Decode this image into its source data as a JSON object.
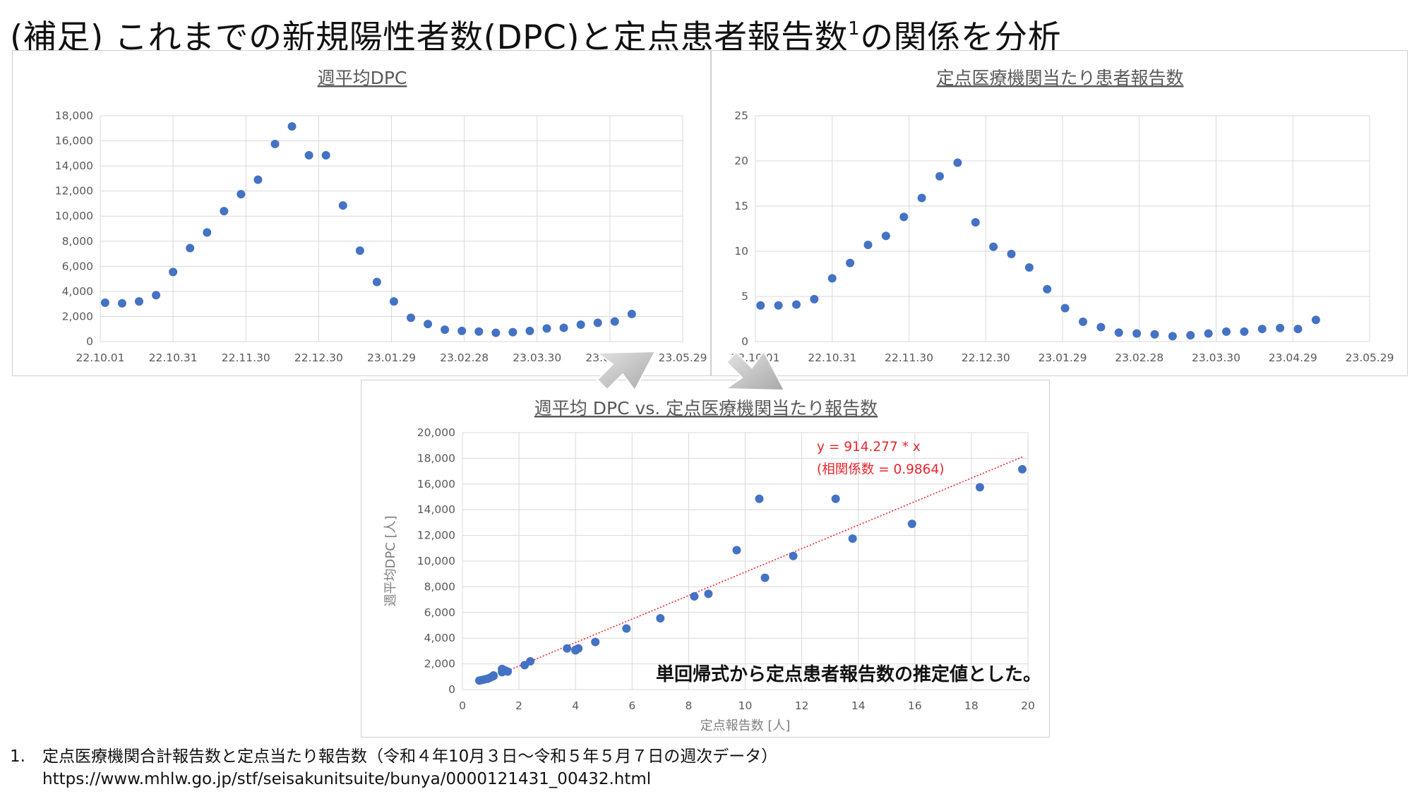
{
  "title": {
    "text": "(補足) これまでの新規陽性者数(DPC)と定点患者報告数",
    "sup": "1",
    "suffix": "の関係を分析"
  },
  "colors": {
    "marker": "#4472c4",
    "trendline": "#e8262d",
    "grid": "#d9d9d9"
  },
  "chart_data": [
    {
      "id": "dpc",
      "type": "scatter",
      "title": "週平均DPC",
      "xlabel": "",
      "ylabel": "",
      "x_ticks": [
        "22.10.01",
        "22.10.31",
        "22.11.30",
        "22.12.30",
        "23.01.29",
        "23.02.28",
        "23.03.30",
        "23.04.29",
        "23.05.29"
      ],
      "xlim": [
        "2022-10-01",
        "2023-05-29"
      ],
      "ylim": [
        0,
        18000
      ],
      "y_ticks": [
        "0",
        "2,000",
        "4,000",
        "6,000",
        "8,000",
        "10,000",
        "12,000",
        "14,000",
        "16,000",
        "18,000"
      ],
      "grid": true,
      "x": [
        "2022-10-03",
        "2022-10-10",
        "2022-10-17",
        "2022-10-24",
        "2022-10-31",
        "2022-11-07",
        "2022-11-14",
        "2022-11-21",
        "2022-11-28",
        "2022-12-05",
        "2022-12-12",
        "2022-12-19",
        "2022-12-26",
        "2023-01-02",
        "2023-01-09",
        "2023-01-16",
        "2023-01-23",
        "2023-01-30",
        "2023-02-06",
        "2023-02-13",
        "2023-02-20",
        "2023-02-27",
        "2023-03-06",
        "2023-03-13",
        "2023-03-20",
        "2023-03-27",
        "2023-04-03",
        "2023-04-10",
        "2023-04-17",
        "2023-04-24",
        "2023-05-01",
        "2023-05-08"
      ],
      "y": [
        3100,
        3050,
        3200,
        3700,
        5550,
        7450,
        8700,
        10400,
        11750,
        12900,
        15750,
        17150,
        14850,
        14850,
        10850,
        7250,
        4750,
        3200,
        1900,
        1400,
        950,
        850,
        800,
        700,
        750,
        850,
        1050,
        1100,
        1350,
        1500,
        1600,
        2200
      ]
    },
    {
      "id": "report",
      "type": "scatter",
      "title": "定点医療機関当たり患者報告数",
      "xlabel": "",
      "ylabel": "",
      "x_ticks": [
        "22.10.01",
        "22.10.31",
        "22.11.30",
        "22.12.30",
        "23.01.29",
        "23.02.28",
        "23.03.30",
        "23.04.29",
        "23.05.29"
      ],
      "xlim": [
        "2022-10-01",
        "2023-05-29"
      ],
      "ylim": [
        0,
        25
      ],
      "y_ticks": [
        "0",
        "5",
        "10",
        "15",
        "20",
        "25"
      ],
      "grid": true,
      "x": [
        "2022-10-03",
        "2022-10-10",
        "2022-10-17",
        "2022-10-24",
        "2022-10-31",
        "2022-11-07",
        "2022-11-14",
        "2022-11-21",
        "2022-11-28",
        "2022-12-05",
        "2022-12-12",
        "2022-12-19",
        "2022-12-26",
        "2023-01-02",
        "2023-01-09",
        "2023-01-16",
        "2023-01-23",
        "2023-01-30",
        "2023-02-06",
        "2023-02-13",
        "2023-02-20",
        "2023-02-27",
        "2023-03-06",
        "2023-03-13",
        "2023-03-20",
        "2023-03-27",
        "2023-04-03",
        "2023-04-10",
        "2023-04-17",
        "2023-04-24",
        "2023-05-01",
        "2023-05-08"
      ],
      "y": [
        4.0,
        4.0,
        4.1,
        4.7,
        7.0,
        8.7,
        10.7,
        11.7,
        13.8,
        15.9,
        18.3,
        19.8,
        13.2,
        10.5,
        9.7,
        8.2,
        5.8,
        3.7,
        2.2,
        1.6,
        1.0,
        0.9,
        0.8,
        0.6,
        0.7,
        0.9,
        1.1,
        1.1,
        1.4,
        1.5,
        1.4,
        2.4
      ]
    },
    {
      "id": "scatter",
      "type": "scatter",
      "title": "週平均 DPC vs. 定点医療機関当たり報告数",
      "xlabel": "定点報告数 [人]",
      "ylabel": "週平均DPC [人]",
      "xlim": [
        0,
        20
      ],
      "ylim": [
        0,
        20000
      ],
      "x_ticks": [
        "0",
        "2",
        "4",
        "6",
        "8",
        "10",
        "12",
        "14",
        "16",
        "18",
        "20"
      ],
      "y_ticks": [
        "0",
        "2,000",
        "4,000",
        "6,000",
        "8,000",
        "10,000",
        "12,000",
        "14,000",
        "16,000",
        "18,000",
        "20,000"
      ],
      "grid": true,
      "x": [
        4.0,
        4.0,
        4.1,
        4.7,
        7.0,
        8.7,
        10.7,
        11.7,
        13.8,
        15.9,
        18.3,
        19.8,
        13.2,
        10.5,
        9.7,
        8.2,
        5.8,
        3.7,
        2.2,
        1.6,
        1.0,
        0.9,
        0.8,
        0.6,
        0.7,
        0.9,
        1.1,
        1.1,
        1.4,
        1.5,
        1.4,
        2.4
      ],
      "y": [
        3100,
        3050,
        3200,
        3700,
        5550,
        7450,
        8700,
        10400,
        11750,
        12900,
        15750,
        17150,
        14850,
        14850,
        10850,
        7250,
        4750,
        3200,
        1900,
        1400,
        950,
        850,
        800,
        700,
        750,
        850,
        1050,
        1100,
        1350,
        1500,
        1600,
        2200
      ],
      "trendline": {
        "slope": 914.277,
        "x_range": [
          1.7,
          19.8
        ]
      },
      "annotations": [
        "y = 914.277 * x",
        "(相関係数 = 0.9864)"
      ]
    }
  ],
  "regression_note": "単回帰式から定点患者報告数の推定値とした。",
  "footnote": {
    "number": "1.",
    "text": "定点医療機関合計報告数と定点当たり報告数（令和４年10月３日〜令和５年５月７日の週次データ）",
    "url": "https://www.mhlw.go.jp/stf/seisakunitsuite/bunya/0000121431_00432.html"
  }
}
